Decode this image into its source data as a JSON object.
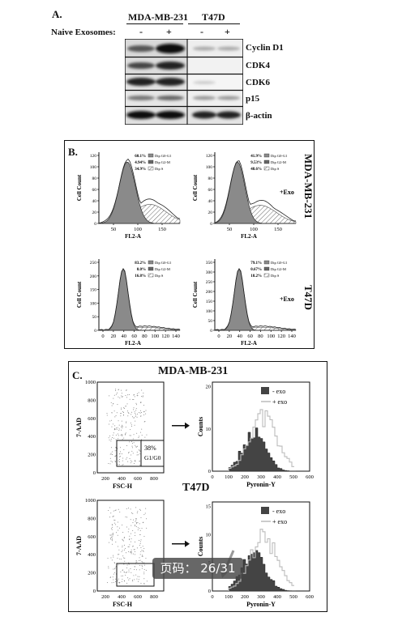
{
  "panelA": {
    "label": "A.",
    "lines": [
      "MDA-MB-231",
      "T47D"
    ],
    "treatment_label": "Naive Exosomes:",
    "lane_signs": [
      "-",
      "+",
      "-",
      "+"
    ],
    "proteins": [
      "Cyclin D1",
      "CDK4",
      "CDK6",
      "p15",
      "β-actin"
    ]
  },
  "panelB": {
    "label": "B.",
    "row_labels": [
      "MDA-MB-231",
      "T47D"
    ],
    "ylabel": "Cell Count",
    "xlabel": "FL2-A",
    "exo_tag": "+Exo",
    "legend_names": [
      "Dip G0-G1",
      "Dip G2-M",
      "Dip S"
    ],
    "plots": [
      {
        "pcts": [
          "60.1%",
          "4.94%",
          "34.9%"
        ],
        "exo": false,
        "yticks": [
          "0",
          "20",
          "40",
          "60",
          "80",
          "100",
          "120"
        ],
        "xticks": [
          "50",
          "100",
          "150"
        ]
      },
      {
        "pcts": [
          "41.9%",
          "9.53%",
          "48.6%"
        ],
        "exo": true,
        "yticks": [
          "0",
          "20",
          "40",
          "60",
          "80",
          "100",
          "120"
        ],
        "xticks": [
          "50",
          "100",
          "150"
        ]
      },
      {
        "pcts": [
          "83.2%",
          "0.0%",
          "16.8%"
        ],
        "exo": false,
        "yticks": [
          "0",
          "50",
          "100",
          "150",
          "200",
          "250"
        ],
        "xticks": [
          "0",
          "20",
          "40",
          "60",
          "80",
          "100",
          "120",
          "140"
        ]
      },
      {
        "pcts": [
          "79.1%",
          "0.67%",
          "18.2%"
        ],
        "exo": true,
        "yticks": [
          "0",
          "50",
          "100",
          "150",
          "200",
          "250",
          "300",
          "350"
        ],
        "xticks": [
          "0",
          "20",
          "40",
          "60",
          "80",
          "100",
          "120",
          "140"
        ]
      }
    ]
  },
  "panelC": {
    "label": "C.",
    "titles": [
      "MDA-MB-231",
      "T47D"
    ],
    "scatter_ylabel": "7-AAD",
    "scatter_xlabel": "FSC-H",
    "scatter_ticks": [
      "0",
      "200",
      "400",
      "600",
      "800",
      "1000"
    ],
    "gate_pct": "38%",
    "gate_label": "G1/G0",
    "hist_xlabel": "Pyronin-Y",
    "hist_ylabel": "Counts",
    "hist_xticks": [
      "0",
      "100",
      "200",
      "300",
      "400",
      "500",
      "600"
    ],
    "hist1_yticks": [
      "0",
      "10",
      "20"
    ],
    "hist2_yticks": [
      "0",
      "5",
      "10",
      "15"
    ],
    "legend": [
      "- exo",
      "+ exo"
    ]
  },
  "page_indicator": "页码： 26/31"
}
